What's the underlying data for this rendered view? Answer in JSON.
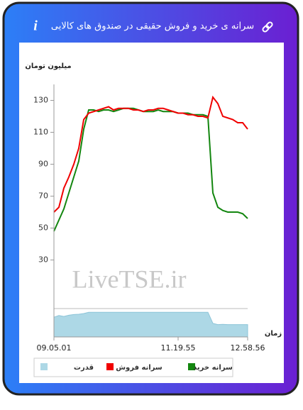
{
  "chart_data": {
    "type": "line",
    "title": "سرانه ی خرید و فروش حقیقی در صندوق های کالایی",
    "y_label": "میلیون تومان",
    "x_label": "زمان",
    "watermark": "LiveTSE.ir",
    "categories": [
      "09.05.01",
      null,
      null,
      null,
      null,
      null,
      null,
      null,
      null,
      null,
      null,
      null,
      null,
      null,
      null,
      null,
      null,
      null,
      null,
      null,
      null,
      null,
      null,
      null,
      null,
      "11.19.55",
      null,
      null,
      null,
      null,
      null,
      null,
      null,
      null,
      null,
      null,
      null,
      null,
      null,
      "12.58.56"
    ],
    "ylim": [
      20,
      140
    ],
    "yticks": [
      30,
      50,
      70,
      90,
      110,
      130
    ],
    "y2lim": [
      0,
      1.15
    ],
    "series": [
      {
        "name": "سرانه خرید",
        "color": "#13860f",
        "values": [
          48,
          55,
          62,
          72,
          82,
          92,
          112,
          124,
          124,
          123,
          124,
          124,
          123,
          124,
          125,
          125,
          125,
          124,
          123,
          123,
          123,
          124,
          123,
          123,
          123,
          122,
          122,
          122,
          121,
          121,
          121,
          120,
          72,
          63,
          61,
          60,
          60,
          60,
          59,
          56
        ]
      },
      {
        "name": "سرانه فروش",
        "color": "#f00000",
        "values": [
          60,
          63,
          75,
          82,
          90,
          100,
          118,
          122,
          123,
          124,
          125,
          126,
          124,
          125,
          125,
          125,
          124,
          124,
          123,
          124,
          124,
          125,
          125,
          124,
          123,
          122,
          122,
          121,
          121,
          120,
          120,
          119,
          132,
          128,
          120,
          119,
          118,
          116,
          116,
          112
        ]
      },
      {
        "name": "قدرت",
        "color": "#add8e6",
        "axis": "y2",
        "values": [
          0.8,
          0.87,
          0.83,
          0.88,
          0.91,
          0.92,
          0.95,
          1.0,
          1.0,
          1.0,
          1.0,
          1.0,
          1.0,
          1.0,
          1.0,
          1.0,
          1.0,
          1.0,
          1.0,
          1.0,
          1.0,
          1.0,
          1.0,
          1.0,
          1.0,
          1.0,
          1.0,
          1.0,
          1.0,
          1.0,
          1.0,
          1.0,
          0.55,
          0.5,
          0.51,
          0.5,
          0.5,
          0.5,
          0.5,
          0.5
        ]
      }
    ]
  }
}
